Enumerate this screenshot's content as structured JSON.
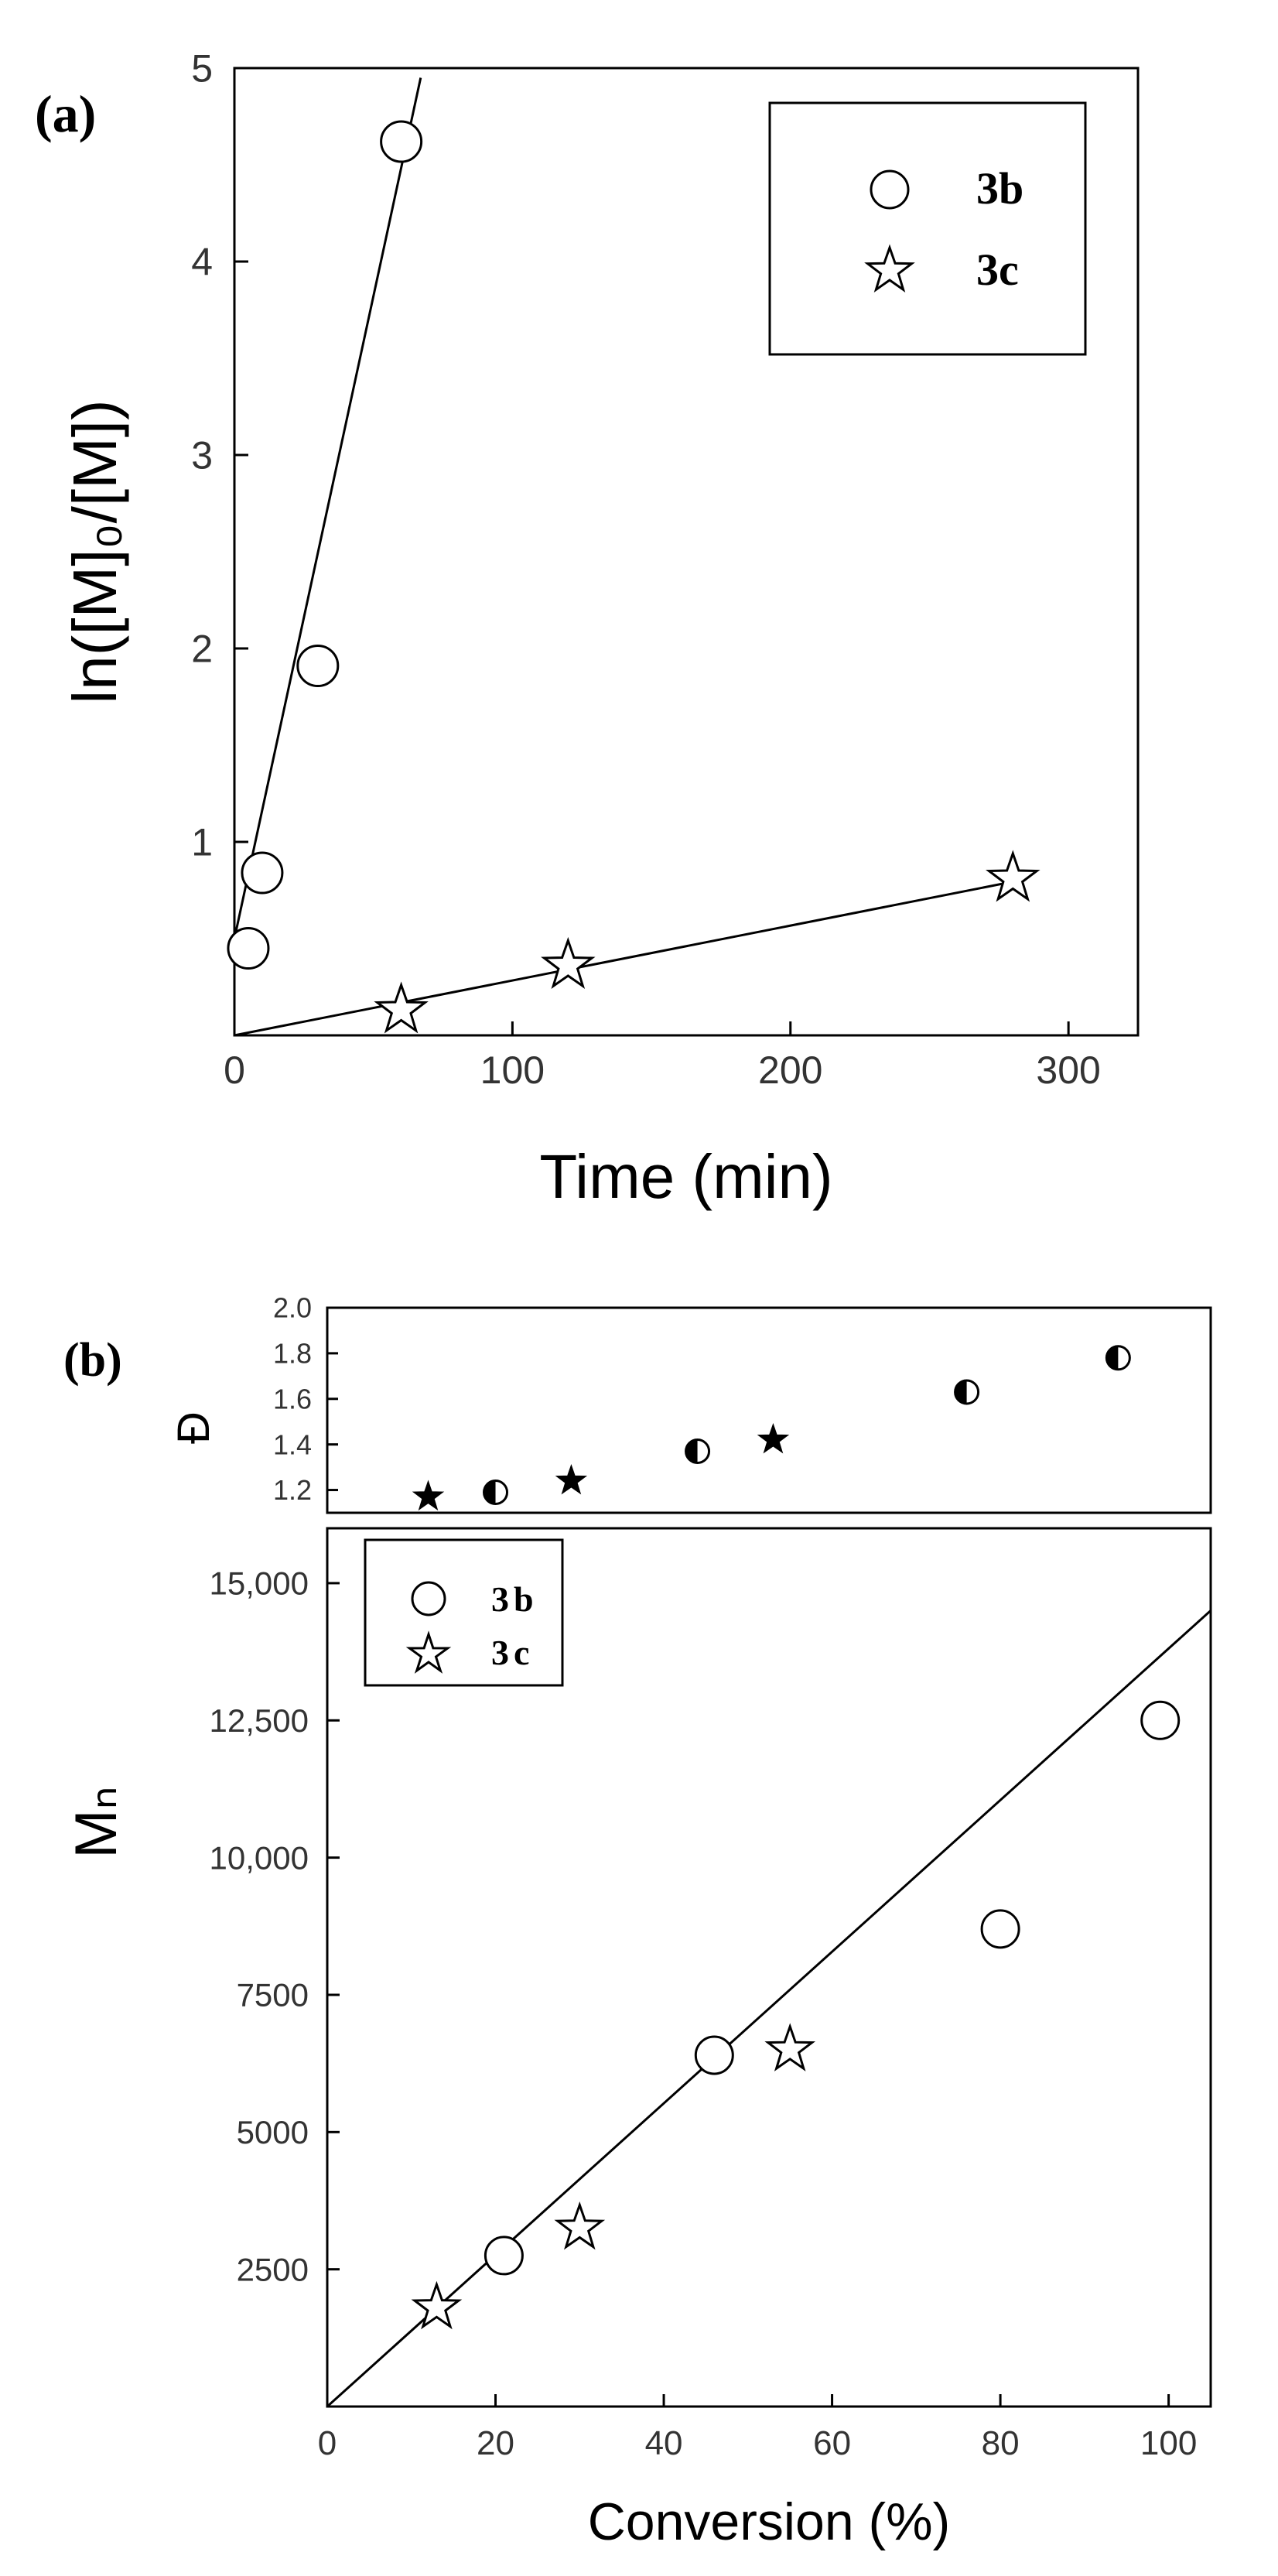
{
  "chart_data": [
    {
      "type": "scatter",
      "panel_label": "(a)",
      "xlabel": "Time (min)",
      "ylabel": "ln([M]₀/[M])",
      "xlim": [
        0,
        325
      ],
      "ylim": [
        0,
        5
      ],
      "x_ticks": [
        "0",
        "100",
        "200",
        "300"
      ],
      "y_ticks": [
        "1",
        "2",
        "3",
        "4",
        "5"
      ],
      "x_tick_values": [
        0,
        100,
        200,
        300
      ],
      "y_tick_values": [
        1,
        2,
        3,
        4,
        5
      ],
      "legend": {
        "placement": "top-right",
        "entries": [
          "3b",
          "3c"
        ]
      },
      "series": [
        {
          "name": "3b",
          "marker": "circle-open",
          "points": [
            [
              5,
              0.45
            ],
            [
              10,
              0.84
            ],
            [
              30,
              1.91
            ],
            [
              60,
              4.62
            ]
          ],
          "fit": [
            [
              0,
              0.5
            ],
            [
              67,
              4.95
            ]
          ]
        },
        {
          "name": "3c",
          "marker": "star-open",
          "points": [
            [
              60,
              0.13
            ],
            [
              120,
              0.36
            ],
            [
              280,
              0.81
            ]
          ],
          "fit": [
            [
              0,
              0.0
            ],
            [
              282,
              0.8
            ]
          ]
        }
      ]
    },
    {
      "type": "scatter",
      "panel_label": "(b)",
      "sub_panel": "dispersity",
      "ylabel": "Đ",
      "xlim": [
        0,
        105
      ],
      "ylim": [
        1.1,
        2.0
      ],
      "y_ticks": [
        "1.2",
        "1.4",
        "1.6",
        "1.8",
        "2.0"
      ],
      "y_tick_values": [
        1.2,
        1.4,
        1.6,
        1.8,
        2.0
      ],
      "series": [
        {
          "name": "3b",
          "marker": "circle-half",
          "points": [
            [
              20,
              1.19
            ],
            [
              44,
              1.37
            ],
            [
              76,
              1.63
            ],
            [
              94,
              1.78
            ]
          ]
        },
        {
          "name": "3c",
          "marker": "star-filled",
          "points": [
            [
              12,
              1.17
            ],
            [
              29,
              1.24
            ],
            [
              53,
              1.42
            ]
          ]
        }
      ]
    },
    {
      "type": "scatter",
      "sub_panel": "molecular-weight",
      "xlabel": "Conversion (%)",
      "ylabel": "Mₙ",
      "xlim": [
        0,
        105
      ],
      "ylim": [
        0,
        16000
      ],
      "x_ticks": [
        "0",
        "20",
        "40",
        "60",
        "80",
        "100"
      ],
      "x_tick_values": [
        0,
        20,
        40,
        60,
        80,
        100
      ],
      "y_ticks": [
        "2500",
        "5000",
        "7500",
        "10,000",
        "12,500",
        "15,000"
      ],
      "y_tick_values": [
        2500,
        5000,
        7500,
        10000,
        12500,
        15000
      ],
      "legend": {
        "placement": "top-left",
        "entries": [
          "3b",
          "3c"
        ]
      },
      "series": [
        {
          "name": "3b",
          "marker": "circle-open",
          "points": [
            [
              21,
              2750
            ],
            [
              46,
              6400
            ],
            [
              80,
              8700
            ],
            [
              99,
              12500
            ]
          ]
        },
        {
          "name": "3c",
          "marker": "star-open",
          "points": [
            [
              13,
              1800
            ],
            [
              30,
              3250
            ],
            [
              55,
              6500
            ]
          ]
        }
      ],
      "fit": [
        [
          0,
          0
        ],
        [
          105,
          14500
        ]
      ]
    }
  ]
}
